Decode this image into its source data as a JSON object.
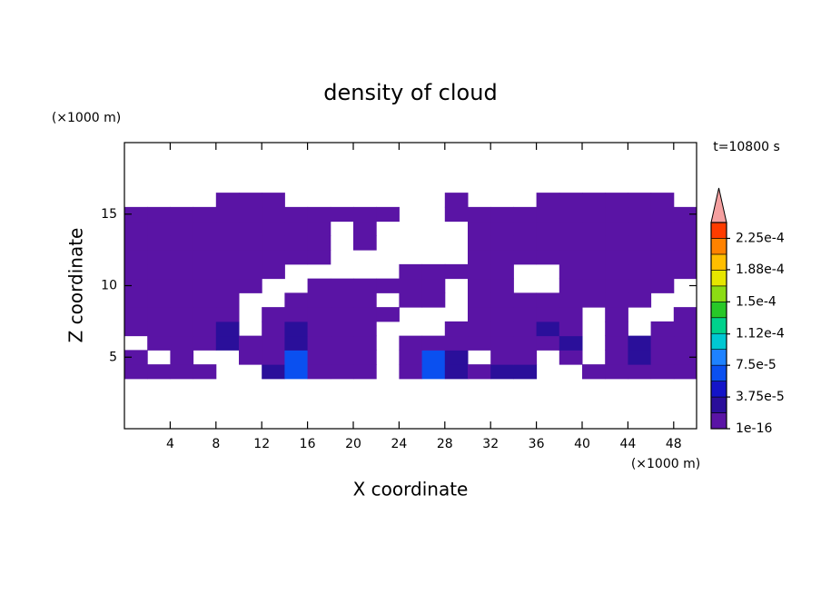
{
  "chart_data": {
    "type": "contour",
    "title": "density of cloud",
    "annotation": "t=10800 s",
    "x_label": "X coordinate",
    "y_label": "Z coordinate",
    "x_unit": "(×1000 m)",
    "y_unit": "(×1000 m)",
    "xlim": [
      0,
      50
    ],
    "ylim": [
      0,
      20
    ],
    "xticks": [
      4,
      8,
      12,
      16,
      20,
      24,
      28,
      32,
      36,
      40,
      44,
      48
    ],
    "yticks": [
      5,
      10,
      15
    ],
    "x": [
      1,
      3,
      5,
      7,
      9,
      11,
      13,
      15,
      17,
      19,
      21,
      23,
      25,
      27,
      29,
      31,
      33,
      35,
      37,
      39,
      41,
      43,
      45,
      47,
      49
    ],
    "y": [
      4,
      5,
      6,
      7,
      8,
      9,
      10,
      11,
      12,
      13,
      14,
      15,
      16
    ],
    "z": [
      [
        1e-05,
        1e-05,
        1e-05,
        1e-05,
        null,
        null,
        3e-05,
        6e-05,
        1e-05,
        1e-05,
        1e-05,
        null,
        1e-05,
        6e-05,
        3e-05,
        1e-05,
        3e-05,
        3e-05,
        null,
        null,
        1e-05,
        1e-05,
        1e-05,
        1e-05,
        1e-05
      ],
      [
        1e-05,
        null,
        1e-05,
        null,
        null,
        1e-05,
        1e-05,
        6e-05,
        1e-05,
        1e-05,
        1e-05,
        null,
        1e-05,
        6e-05,
        3e-05,
        null,
        1e-05,
        1e-05,
        null,
        1e-05,
        null,
        1e-05,
        3e-05,
        1e-05,
        1e-05
      ],
      [
        null,
        1e-05,
        1e-05,
        1e-05,
        3e-05,
        1e-05,
        1e-05,
        3e-05,
        1e-05,
        1e-05,
        1e-05,
        null,
        1e-05,
        1e-05,
        1e-05,
        1e-05,
        1e-05,
        1e-05,
        1e-05,
        3e-05,
        null,
        1e-05,
        3e-05,
        1e-05,
        1e-05
      ],
      [
        1e-05,
        1e-05,
        1e-05,
        1e-05,
        3e-05,
        null,
        1e-05,
        3e-05,
        1e-05,
        1e-05,
        1e-05,
        null,
        null,
        null,
        1e-05,
        1e-05,
        1e-05,
        1e-05,
        3e-05,
        1e-05,
        null,
        1e-05,
        null,
        1e-05,
        1e-05
      ],
      [
        1e-05,
        1e-05,
        1e-05,
        1e-05,
        1e-05,
        null,
        1e-05,
        1e-05,
        1e-05,
        1e-05,
        1e-05,
        1e-05,
        null,
        null,
        null,
        1e-05,
        1e-05,
        1e-05,
        1e-05,
        1e-05,
        null,
        1e-05,
        null,
        null,
        1e-05
      ],
      [
        1e-05,
        1e-05,
        1e-05,
        1e-05,
        1e-05,
        null,
        null,
        1e-05,
        1e-05,
        1e-05,
        1e-05,
        null,
        1e-05,
        1e-05,
        null,
        1e-05,
        1e-05,
        1e-05,
        1e-05,
        1e-05,
        1e-05,
        1e-05,
        1e-05,
        null,
        null
      ],
      [
        1e-05,
        1e-05,
        1e-05,
        1e-05,
        1e-05,
        1e-05,
        null,
        null,
        1e-05,
        1e-05,
        1e-05,
        1e-05,
        1e-05,
        1e-05,
        null,
        1e-05,
        1e-05,
        null,
        null,
        1e-05,
        1e-05,
        1e-05,
        1e-05,
        1e-05,
        null
      ],
      [
        1e-05,
        1e-05,
        1e-05,
        1e-05,
        1e-05,
        1e-05,
        1e-05,
        null,
        null,
        null,
        null,
        null,
        1e-05,
        1e-05,
        1e-05,
        1e-05,
        1e-05,
        null,
        null,
        1e-05,
        1e-05,
        1e-05,
        1e-05,
        1e-05,
        1e-05
      ],
      [
        1e-05,
        1e-05,
        1e-05,
        1e-05,
        1e-05,
        1e-05,
        1e-05,
        1e-05,
        1e-05,
        null,
        null,
        null,
        null,
        null,
        null,
        1e-05,
        1e-05,
        1e-05,
        1e-05,
        1e-05,
        1e-05,
        1e-05,
        1e-05,
        1e-05,
        1e-05
      ],
      [
        1e-05,
        1e-05,
        1e-05,
        1e-05,
        1e-05,
        1e-05,
        1e-05,
        1e-05,
        1e-05,
        null,
        1e-05,
        null,
        null,
        null,
        null,
        1e-05,
        1e-05,
        1e-05,
        1e-05,
        1e-05,
        1e-05,
        1e-05,
        1e-05,
        1e-05,
        1e-05
      ],
      [
        1e-05,
        1e-05,
        1e-05,
        1e-05,
        1e-05,
        1e-05,
        1e-05,
        1e-05,
        1e-05,
        null,
        1e-05,
        null,
        null,
        null,
        null,
        1e-05,
        1e-05,
        1e-05,
        1e-05,
        1e-05,
        1e-05,
        1e-05,
        1e-05,
        1e-05,
        1e-05
      ],
      [
        1e-05,
        1e-05,
        1e-05,
        1e-05,
        1e-05,
        1e-05,
        1e-05,
        1e-05,
        1e-05,
        1e-05,
        1e-05,
        1e-05,
        null,
        null,
        1e-05,
        1e-05,
        1e-05,
        1e-05,
        1e-05,
        1e-05,
        1e-05,
        1e-05,
        1e-05,
        1e-05,
        1e-05
      ],
      [
        null,
        null,
        null,
        null,
        1e-05,
        1e-05,
        1e-05,
        null,
        null,
        null,
        null,
        null,
        null,
        null,
        1e-05,
        null,
        null,
        null,
        1e-05,
        1e-05,
        1e-05,
        1e-05,
        1e-05,
        1e-05,
        null
      ]
    ],
    "levels": [
      1e-16,
      1.875e-05,
      3.75e-05,
      5.625e-05,
      7.5e-05,
      9.375e-05,
      0.0001125,
      0.00013125,
      0.00015,
      0.00016875,
      0.0001875,
      0.00020625,
      0.000225
    ],
    "colors": [
      "#5a14a5",
      "#2a0f9a",
      "#1414c8",
      "#0a50f0",
      "#1e82ff",
      "#00c8d2",
      "#00d28c",
      "#28c828",
      "#8cdc14",
      "#e6e600",
      "#ffbe00",
      "#ff8200",
      "#ff3c00"
    ],
    "extend_color": "#f5a0a0",
    "clim": [
      1e-16,
      0.00024375
    ],
    "cticks": [
      1e-16,
      {
        "value": 3.75e-05,
        "label": "3.75e-5"
      },
      {
        "value": 7.5e-05,
        "label": "7.5e-5"
      },
      {
        "value": 0.000112,
        "label": "1.12e-4"
      },
      {
        "value": 0.00015,
        "label": "1.5e-4"
      },
      {
        "value": 0.000188,
        "label": "1.88e-4"
      },
      {
        "value": 0.000225,
        "label": "2.25e-4"
      }
    ]
  }
}
